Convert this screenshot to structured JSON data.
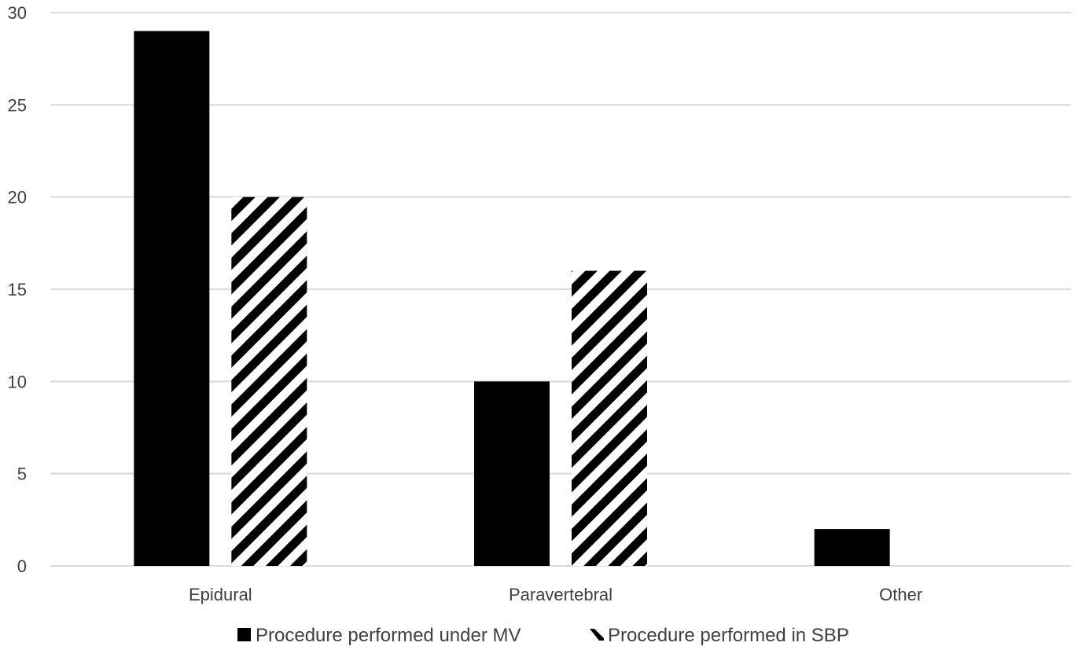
{
  "chart_data": {
    "type": "bar",
    "title": "",
    "xlabel": "",
    "ylabel": "",
    "categories": [
      "Epidural",
      "Paravertebral",
      "Other"
    ],
    "series": [
      {
        "name": "Procedure performed under MV",
        "values": [
          29,
          10,
          2
        ],
        "fill": "solid",
        "color": "#000000"
      },
      {
        "name": "Procedure performed in SBP",
        "values": [
          20,
          16,
          0
        ],
        "fill": "diagonal-hatch",
        "color": "#000000"
      }
    ],
    "ylim": [
      0,
      30
    ],
    "yticks": [
      "0",
      "5",
      "10",
      "15",
      "20",
      "25",
      "30"
    ],
    "grid": true,
    "legend_position": "bottom"
  }
}
